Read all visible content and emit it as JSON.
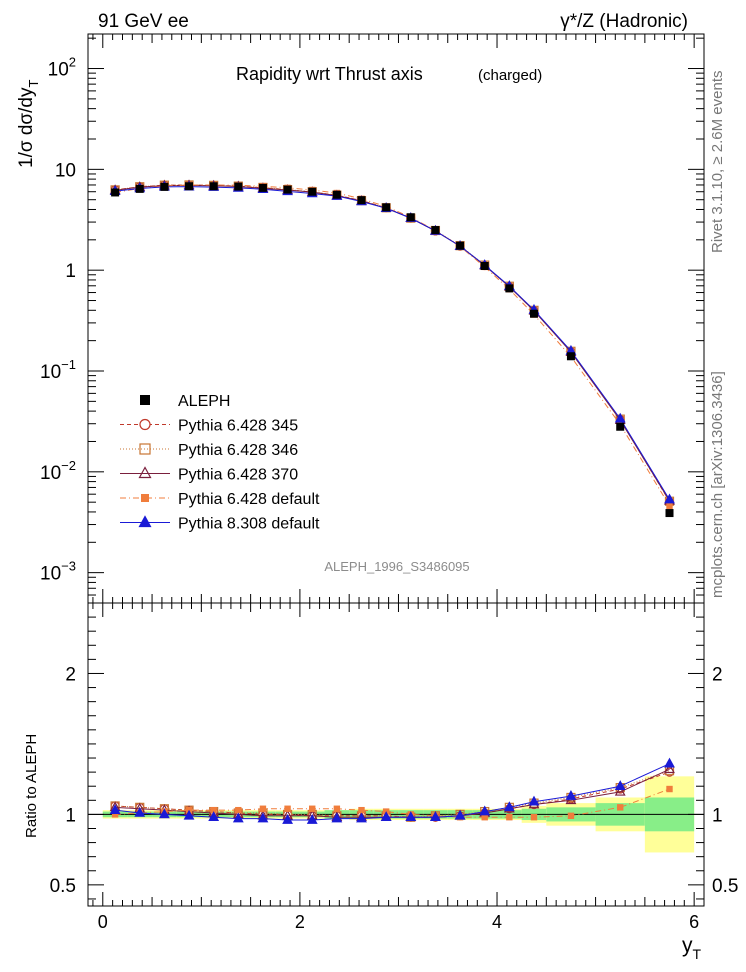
{
  "header": {
    "left": "91 GeV ee",
    "right": "γ*/Z (Hadronic)"
  },
  "side_label_top": "Rivet 3.1.10, ≥ 2.6M events",
  "side_label_bottom": "mcplots.cern.ch [arXiv:1306.3436]",
  "chart_data": {
    "type": "line",
    "title": "Rapidity wrt Thrust axis",
    "title_note": "(charged)",
    "watermark": "ALEPH_1996_S3486095",
    "ylabel": "1/σ dσ/dy_T",
    "xlabel": "y_T",
    "ratio_ylabel": "Ratio to ALEPH",
    "xlim": [
      -0.15,
      6.1
    ],
    "ylim_main": [
      0.0005,
      220
    ],
    "y_scale_main": "log",
    "ylim_ratio": [
      0.35,
      2.5
    ],
    "y_scale_ratio": "linear",
    "x_ticks": [
      0,
      2,
      4,
      6
    ],
    "main_ticks": [
      {
        "value": 100,
        "base": "10",
        "exp": "2"
      },
      {
        "value": 10,
        "base": "10",
        "exp": ""
      },
      {
        "value": 1,
        "base": "1",
        "exp": ""
      },
      {
        "value": 0.1,
        "base": "10",
        "exp": "−1"
      },
      {
        "value": 0.01,
        "base": "10",
        "exp": "−2"
      },
      {
        "value": 0.001,
        "base": "10",
        "exp": "−3"
      }
    ],
    "ratio_ticks": [
      0.5,
      1,
      2
    ],
    "x": [
      0.125,
      0.375,
      0.625,
      0.875,
      1.125,
      1.375,
      1.625,
      1.875,
      2.125,
      2.375,
      2.625,
      2.875,
      3.125,
      3.375,
      3.625,
      3.875,
      4.125,
      4.375,
      4.75,
      5.25,
      5.75
    ],
    "bin_edges": [
      0,
      0.25,
      0.5,
      0.75,
      1.0,
      1.25,
      1.5,
      1.75,
      2.0,
      2.25,
      2.5,
      2.75,
      3.0,
      3.25,
      3.5,
      3.75,
      4.0,
      4.25,
      4.5,
      5.0,
      5.5,
      6.0
    ],
    "data": {
      "name": "ALEPH",
      "values": [
        5.9,
        6.4,
        6.7,
        6.8,
        6.8,
        6.75,
        6.55,
        6.3,
        6.0,
        5.6,
        4.95,
        4.2,
        3.35,
        2.5,
        1.75,
        1.1,
        0.66,
        0.37,
        0.14,
        0.028,
        0.0039
      ],
      "band_inner": [
        0.02,
        0.02,
        0.02,
        0.02,
        0.02,
        0.02,
        0.02,
        0.02,
        0.02,
        0.03,
        0.03,
        0.03,
        0.03,
        0.03,
        0.03,
        0.03,
        0.03,
        0.04,
        0.05,
        0.08,
        0.12
      ],
      "band_outer": [
        0.03,
        0.03,
        0.03,
        0.03,
        0.03,
        0.03,
        0.03,
        0.03,
        0.03,
        0.03,
        0.04,
        0.04,
        0.04,
        0.04,
        0.04,
        0.04,
        0.04,
        0.06,
        0.08,
        0.12,
        0.27
      ]
    },
    "series": [
      {
        "name": "Pythia 6.428 345",
        "color": "#c0392b",
        "marker": "circle-open",
        "dash": "4,3",
        "ratio": [
          1.06,
          1.05,
          1.04,
          1.03,
          1.02,
          1.01,
          1.0,
          1.0,
          0.99,
          0.99,
          0.99,
          0.99,
          0.98,
          0.98,
          0.99,
          1.01,
          1.04,
          1.07,
          1.11,
          1.18,
          1.3
        ]
      },
      {
        "name": "Pythia 6.428 346",
        "color": "#c87533",
        "marker": "square-open",
        "dash": "1,2",
        "ratio": [
          1.06,
          1.05,
          1.04,
          1.03,
          1.02,
          1.01,
          1.01,
          1.0,
          1.0,
          0.99,
          0.99,
          0.99,
          0.98,
          0.99,
          1.0,
          1.02,
          1.05,
          1.08,
          1.12,
          1.19,
          1.31
        ]
      },
      {
        "name": "Pythia 6.428 370",
        "color": "#7a1f3d",
        "marker": "triangle-open",
        "dash": "",
        "ratio": [
          1.05,
          1.04,
          1.03,
          1.02,
          1.01,
          1.0,
          0.99,
          0.99,
          0.99,
          0.98,
          0.98,
          0.98,
          0.98,
          0.98,
          0.99,
          1.01,
          1.04,
          1.07,
          1.1,
          1.16,
          1.32
        ]
      },
      {
        "name": "Pythia 6.428 default",
        "color": "#f07d3c",
        "marker": "square-filled",
        "dash": "6,3,1,3",
        "ratio": [
          1.0,
          1.01,
          1.02,
          1.03,
          1.03,
          1.03,
          1.04,
          1.04,
          1.04,
          1.04,
          1.03,
          1.02,
          1.0,
          0.99,
          0.98,
          0.98,
          0.98,
          0.98,
          0.99,
          1.05,
          1.18
        ]
      },
      {
        "name": "Pythia 8.308 default",
        "color": "#1a1ad6",
        "marker": "triangle-filled",
        "dash": "",
        "ratio": [
          1.03,
          1.01,
          1.0,
          0.99,
          0.98,
          0.97,
          0.97,
          0.96,
          0.96,
          0.97,
          0.97,
          0.98,
          0.98,
          0.98,
          0.99,
          1.02,
          1.05,
          1.09,
          1.13,
          1.2,
          1.36
        ]
      }
    ],
    "legend_position": "lower-left",
    "grid": false
  }
}
